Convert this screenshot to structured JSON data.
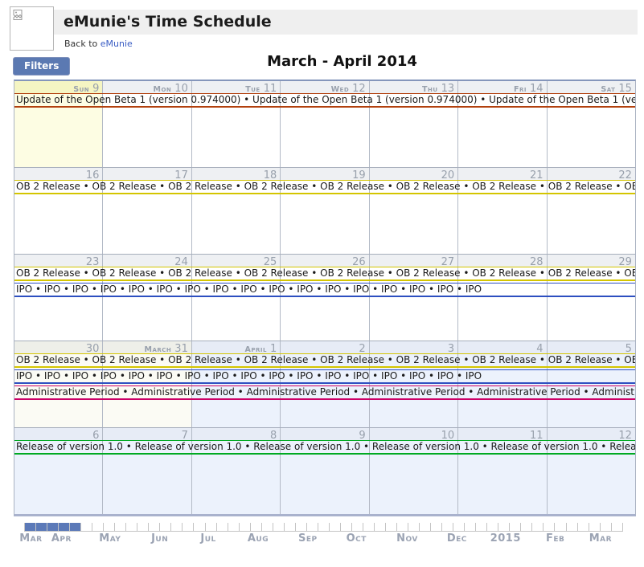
{
  "header": {
    "title": "eMunie's Time Schedule",
    "back_prefix": "Back to ",
    "back_link": "eMunie",
    "logo_icon": "broken-image-icon"
  },
  "toolbar": {
    "filters_label": "Filters",
    "period_title": "March - April 2014"
  },
  "event_types": {
    "update": {
      "label": "Update of the Open Beta 1 (version 0.974000)",
      "color": "#b2400e"
    },
    "ob2": {
      "label": "OB 2 Release",
      "color": "#d4c500"
    },
    "ipo": {
      "label": "IPO",
      "color": "#2d4fc0"
    },
    "admin": {
      "label": "Administrative Period",
      "color": "#cc0066"
    },
    "release": {
      "label": "Release of version 1.0",
      "color": "#00aa22"
    }
  },
  "weeks": [
    {
      "days": [
        {
          "prefix": "Sun",
          "num": "9",
          "variant": "today"
        },
        {
          "prefix": "Mon",
          "num": "10"
        },
        {
          "prefix": "Tue",
          "num": "11"
        },
        {
          "prefix": "Wed",
          "num": "12"
        },
        {
          "prefix": "Thu",
          "num": "13"
        },
        {
          "prefix": "Fri",
          "num": "14"
        },
        {
          "prefix": "Sat",
          "num": "15"
        }
      ],
      "events": [
        {
          "type": "update",
          "repeat": 4
        }
      ]
    },
    {
      "days": [
        {
          "num": "16"
        },
        {
          "num": "17"
        },
        {
          "num": "18"
        },
        {
          "num": "19"
        },
        {
          "num": "20"
        },
        {
          "num": "21"
        },
        {
          "num": "22"
        }
      ],
      "events": [
        {
          "type": "ob2",
          "repeat": 10
        }
      ]
    },
    {
      "days": [
        {
          "num": "23"
        },
        {
          "num": "24"
        },
        {
          "num": "25"
        },
        {
          "num": "26"
        },
        {
          "num": "27"
        },
        {
          "num": "28"
        },
        {
          "num": "29"
        }
      ],
      "events": [
        {
          "type": "ob2",
          "repeat": 10
        },
        {
          "type": "ipo",
          "repeat": 17
        }
      ]
    },
    {
      "days": [
        {
          "num": "30",
          "variant": "latemarch"
        },
        {
          "prefix": "March",
          "num": "31",
          "variant": "latemarch"
        },
        {
          "prefix": "April",
          "num": "1",
          "variant": "april"
        },
        {
          "num": "2",
          "variant": "april"
        },
        {
          "num": "3",
          "variant": "april"
        },
        {
          "num": "4",
          "variant": "april"
        },
        {
          "num": "5",
          "variant": "april"
        }
      ],
      "events": [
        {
          "type": "ob2",
          "repeat": 10
        },
        {
          "type": "ipo",
          "repeat": 17
        },
        {
          "type": "admin",
          "repeat": 7
        }
      ]
    },
    {
      "days": [
        {
          "num": "6",
          "variant": "april"
        },
        {
          "num": "7",
          "variant": "april"
        },
        {
          "num": "8",
          "variant": "april"
        },
        {
          "num": "9",
          "variant": "april"
        },
        {
          "num": "10",
          "variant": "april"
        },
        {
          "num": "11",
          "variant": "april"
        },
        {
          "num": "12",
          "variant": "april"
        }
      ],
      "events": [
        {
          "type": "release",
          "repeat": 7
        }
      ]
    }
  ],
  "timeline": {
    "weeks_total": 53,
    "highlight_weeks": 5,
    "highlight_color": "#5b79b8",
    "labels": [
      {
        "text": "Mar",
        "week": 0.6
      },
      {
        "text": "Apr",
        "week": 3.3
      },
      {
        "text": "May",
        "week": 7.6
      },
      {
        "text": "Jun",
        "week": 12.0
      },
      {
        "text": "Jul",
        "week": 16.3
      },
      {
        "text": "Aug",
        "week": 20.7
      },
      {
        "text": "Sep",
        "week": 25.1
      },
      {
        "text": "Oct",
        "week": 29.4
      },
      {
        "text": "Nov",
        "week": 33.9
      },
      {
        "text": "Dec",
        "week": 38.3
      },
      {
        "text": "2015",
        "week": 42.6
      },
      {
        "text": "Feb",
        "week": 47.0
      },
      {
        "text": "Mar",
        "week": 51.0
      }
    ]
  }
}
